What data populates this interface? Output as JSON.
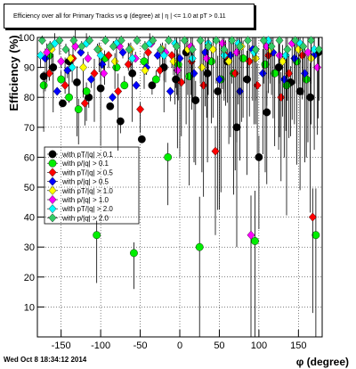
{
  "chart_data": {
    "type": "scatter",
    "title": "Efficiency over all for Primary Tracks vs φ (degree) at | η | <= 1.0 at pT > 0.11",
    "xlabel": "φ (degree)",
    "ylabel": "Efficiency (%)",
    "xlim": [
      -180,
      180
    ],
    "ylim": [
      0,
      100
    ],
    "xticks": [
      -150,
      -100,
      -50,
      0,
      50,
      100,
      150
    ],
    "yticks": [
      10,
      20,
      30,
      40,
      50,
      60,
      70,
      80,
      90,
      100
    ],
    "grid": true,
    "legend_placement": "center-left",
    "series": [
      {
        "name": "with p_{T}/|q| > 0.1",
        "color": "#000000",
        "marker": "circle",
        "points": [
          [
            -172,
            87
          ],
          [
            -160,
            90
          ],
          [
            -148,
            78
          ],
          [
            -140,
            92
          ],
          [
            -130,
            85
          ],
          [
            -115,
            80
          ],
          [
            -100,
            83
          ],
          [
            -88,
            77
          ],
          [
            -75,
            72
          ],
          [
            -60,
            88
          ],
          [
            -48,
            66
          ],
          [
            -35,
            84
          ],
          [
            -20,
            90
          ],
          [
            -5,
            86
          ],
          [
            8,
            95
          ],
          [
            20,
            79
          ],
          [
            35,
            88
          ],
          [
            48,
            82
          ],
          [
            60,
            92
          ],
          [
            72,
            70
          ],
          [
            85,
            86
          ],
          [
            100,
            60
          ],
          [
            110,
            75
          ],
          [
            125,
            90
          ],
          [
            140,
            85
          ],
          [
            152,
            82
          ],
          [
            165,
            80
          ],
          [
            175,
            95
          ]
        ]
      },
      {
        "name": "with p/|q| > 0.1",
        "color": "#00ee00",
        "marker": "circle",
        "points": [
          [
            -172,
            84
          ],
          [
            -165,
            94
          ],
          [
            -150,
            86
          ],
          [
            -140,
            80
          ],
          [
            -128,
            76
          ],
          [
            -118,
            82
          ],
          [
            -105,
            34
          ],
          [
            -95,
            93
          ],
          [
            -80,
            90
          ],
          [
            -70,
            84
          ],
          [
            -58,
            28
          ],
          [
            -45,
            92
          ],
          [
            -30,
            86
          ],
          [
            -15,
            60
          ],
          [
            -2,
            91
          ],
          [
            12,
            87
          ],
          [
            25,
            30
          ],
          [
            40,
            92
          ],
          [
            52,
            86
          ],
          [
            68,
            88
          ],
          [
            80,
            93
          ],
          [
            95,
            32
          ],
          [
            108,
            91
          ],
          [
            120,
            88
          ],
          [
            135,
            84
          ],
          [
            148,
            92
          ],
          [
            160,
            86
          ],
          [
            172,
            34
          ]
        ]
      },
      {
        "name": "with p_{T}/|q| > 0.5",
        "color": "#ff0000",
        "marker": "diamond",
        "points": [
          [
            -165,
            88
          ],
          [
            -145,
            84
          ],
          [
            -135,
            93
          ],
          [
            -120,
            78
          ],
          [
            -108,
            88
          ],
          [
            -90,
            94
          ],
          [
            -78,
            82
          ],
          [
            -65,
            91
          ],
          [
            -50,
            76
          ],
          [
            -40,
            95
          ],
          [
            -25,
            89
          ],
          [
            -10,
            94
          ],
          [
            2,
            85
          ],
          [
            15,
            92
          ],
          [
            30,
            84
          ],
          [
            45,
            62
          ],
          [
            58,
            94
          ],
          [
            70,
            88
          ],
          [
            88,
            92
          ],
          [
            98,
            84
          ],
          [
            112,
            94
          ],
          [
            128,
            80
          ],
          [
            138,
            88
          ],
          [
            155,
            94
          ],
          [
            168,
            40
          ]
        ]
      },
      {
        "name": "with p/|q| > 0.5",
        "color": "#0000ff",
        "marker": "diamond",
        "points": [
          [
            -170,
            93
          ],
          [
            -155,
            82
          ],
          [
            -142,
            89
          ],
          [
            -125,
            95
          ],
          [
            -112,
            86
          ],
          [
            -98,
            91
          ],
          [
            -85,
            80
          ],
          [
            -72,
            95
          ],
          [
            -55,
            84
          ],
          [
            -42,
            90
          ],
          [
            -28,
            94
          ],
          [
            -12,
            82
          ],
          [
            0,
            93
          ],
          [
            18,
            88
          ],
          [
            32,
            95
          ],
          [
            50,
            86
          ],
          [
            64,
            94
          ],
          [
            76,
            82
          ],
          [
            92,
            96
          ],
          [
            105,
            88
          ],
          [
            118,
            95
          ],
          [
            132,
            86
          ],
          [
            145,
            93
          ],
          [
            158,
            88
          ],
          [
            170,
            94
          ]
        ]
      },
      {
        "name": "with p_{T}/|q| > 1.0",
        "color": "#ffff00",
        "marker": "diamond",
        "points": [
          [
            -162,
            96
          ],
          [
            -138,
            93
          ],
          [
            -122,
            90
          ],
          [
            -102,
            96
          ],
          [
            -82,
            92
          ],
          [
            -62,
            96
          ],
          [
            -44,
            89
          ],
          [
            -22,
            96
          ],
          [
            -8,
            92
          ],
          [
            10,
            96
          ],
          [
            28,
            90
          ],
          [
            42,
            96
          ],
          [
            62,
            92
          ],
          [
            78,
            97
          ],
          [
            96,
            93
          ],
          [
            114,
            96
          ],
          [
            130,
            92
          ],
          [
            150,
            96
          ],
          [
            166,
            93
          ]
        ]
      },
      {
        "name": "with p/|q| > 1.0",
        "color": "#ff00ff",
        "marker": "diamond",
        "points": [
          [
            -168,
            95
          ],
          [
            -150,
            92
          ],
          [
            -132,
            97
          ],
          [
            -116,
            93
          ],
          [
            -96,
            88
          ],
          [
            -76,
            97
          ],
          [
            -56,
            93
          ],
          [
            -36,
            98
          ],
          [
            -18,
            95
          ],
          [
            -3,
            89
          ],
          [
            14,
            97
          ],
          [
            34,
            93
          ],
          [
            54,
            98
          ],
          [
            72,
            95
          ],
          [
            90,
            34
          ],
          [
            110,
            97
          ],
          [
            126,
            94
          ],
          [
            142,
            98
          ],
          [
            162,
            95
          ],
          [
            174,
            90
          ]
        ]
      },
      {
        "name": "with p_{T}/|q| > 2.0",
        "color": "#00ffff",
        "marker": "diamond",
        "points": [
          [
            -176,
            94
          ],
          [
            -158,
            98
          ],
          [
            -136,
            90
          ],
          [
            -118,
            98
          ],
          [
            -100,
            94
          ],
          [
            -80,
            98
          ],
          [
            -60,
            93
          ],
          [
            -38,
            98
          ],
          [
            -20,
            94
          ],
          [
            -6,
            98
          ],
          [
            16,
            93
          ],
          [
            36,
            98
          ],
          [
            56,
            94
          ],
          [
            74,
            98
          ],
          [
            94,
            95
          ],
          [
            112,
            99
          ],
          [
            134,
            94
          ],
          [
            152,
            98
          ],
          [
            170,
            96
          ]
        ]
      },
      {
        "name": "with p/|q| > 2.0",
        "color": "#33cc66",
        "marker": "diamond",
        "points": [
          [
            -174,
            99
          ],
          [
            -164,
            97
          ],
          [
            -152,
            99
          ],
          [
            -144,
            96
          ],
          [
            -134,
            99
          ],
          [
            -124,
            97
          ],
          [
            -114,
            99
          ],
          [
            -104,
            96
          ],
          [
            -94,
            99
          ],
          [
            -84,
            97
          ],
          [
            -74,
            99
          ],
          [
            -64,
            96
          ],
          [
            -54,
            99
          ],
          [
            -44,
            97
          ],
          [
            -34,
            99
          ],
          [
            -24,
            96
          ],
          [
            -14,
            99
          ],
          [
            -4,
            97
          ],
          [
            6,
            99
          ],
          [
            16,
            96
          ],
          [
            26,
            99
          ],
          [
            36,
            97
          ],
          [
            46,
            99
          ],
          [
            56,
            96
          ],
          [
            66,
            99
          ],
          [
            76,
            97
          ],
          [
            86,
            99
          ],
          [
            96,
            96
          ],
          [
            106,
            99
          ],
          [
            116,
            97
          ],
          [
            126,
            99
          ],
          [
            136,
            96
          ],
          [
            146,
            99
          ],
          [
            156,
            97
          ],
          [
            166,
            99
          ],
          [
            176,
            96
          ]
        ]
      }
    ]
  },
  "timestamp": "Wed Oct  8 18:34:12 2014"
}
